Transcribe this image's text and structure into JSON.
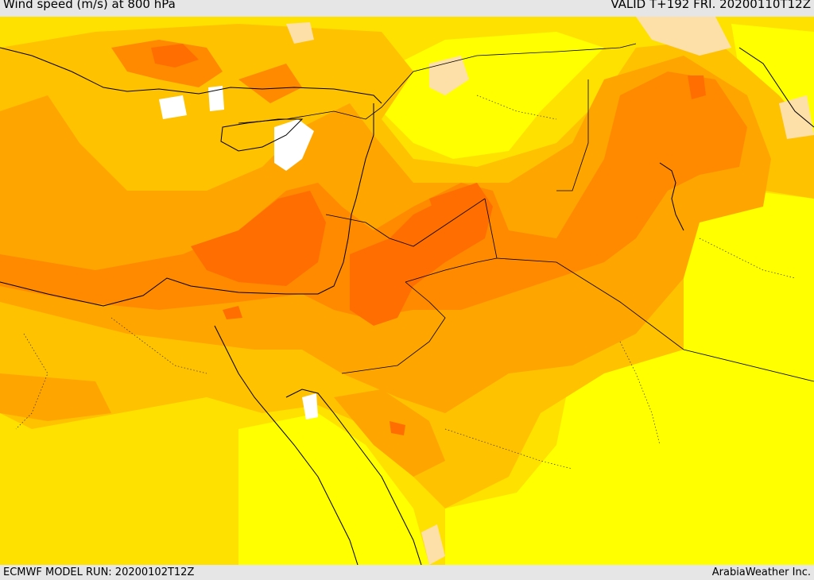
{
  "header": {
    "title": "Wind speed (m/s) at 800 hPa",
    "valid": "VALID T+192 FRI. 20200110T12Z"
  },
  "footer": {
    "model_run": "ECMWF MODEL RUN: 20200102T12Z",
    "credit": "ArabiaWeather Inc."
  },
  "colors": {
    "level_white": "#ffffff",
    "level_pale": "#fddfa8",
    "level_yellow": "#ffff00",
    "level_gold": "#ffe100",
    "level_amber": "#ffc200",
    "level_orange": "#ffa500",
    "level_dark_orange": "#ff8a00",
    "level_deep_orange": "#ff6e00",
    "coast": "#000000"
  }
}
